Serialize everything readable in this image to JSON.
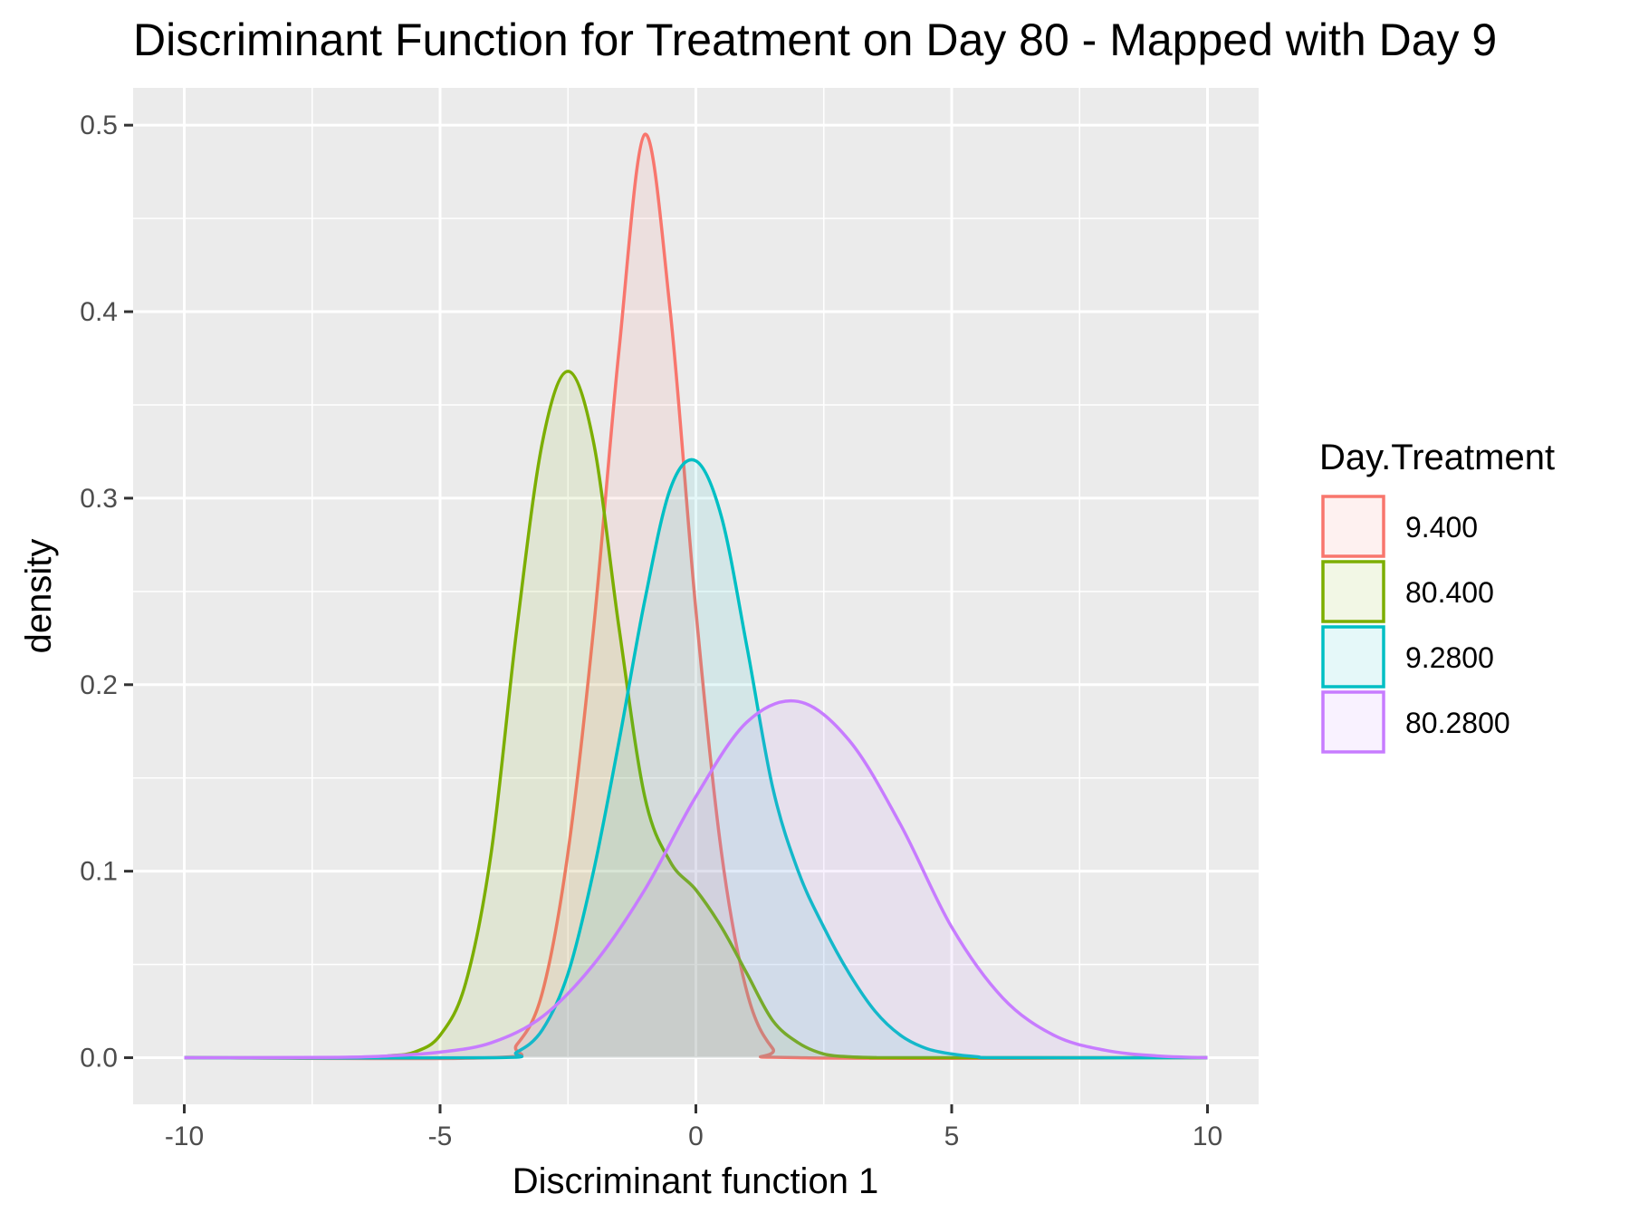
{
  "chart_data": {
    "type": "area",
    "title": "Discriminant Function for Treatment on Day 80 - Mapped with Day 9",
    "xlabel": "Discriminant function 1",
    "ylabel": "density",
    "xlim": [
      -11,
      11
    ],
    "ylim": [
      -0.025,
      0.52
    ],
    "x_ticks": [
      -10,
      -5,
      0,
      5,
      10
    ],
    "x_tick_labels": [
      "-10",
      "-5",
      "0",
      "5",
      "10"
    ],
    "y_ticks": [
      0.0,
      0.1,
      0.2,
      0.3,
      0.4,
      0.5
    ],
    "y_tick_labels": [
      "0.0",
      "0.1",
      "0.2",
      "0.3",
      "0.4",
      "0.5"
    ],
    "grid": true,
    "legend": {
      "title": "Day.Treatment",
      "placement": "right"
    },
    "series": [
      {
        "name": "9.400",
        "color": "#F8766D",
        "x": [
          -10,
          -4,
          -3.5,
          -3,
          -2.5,
          -2,
          -1.5,
          -1,
          -0.5,
          0,
          0.5,
          1,
          1.5,
          2,
          10
        ],
        "y": [
          0,
          0.0,
          0.007,
          0.035,
          0.11,
          0.23,
          0.38,
          0.495,
          0.4,
          0.24,
          0.11,
          0.035,
          0.005,
          0,
          0
        ]
      },
      {
        "name": "80.400",
        "color": "#7CAE00",
        "x": [
          -10,
          -6.5,
          -6,
          -5.5,
          -5,
          -4.5,
          -4,
          -3.5,
          -3,
          -2.5,
          -2,
          -1.5,
          -1,
          -0.5,
          0,
          0.5,
          1,
          1.5,
          2,
          2.5,
          3,
          3.5,
          4,
          10
        ],
        "y": [
          0,
          0.0,
          0.001,
          0.003,
          0.012,
          0.04,
          0.11,
          0.23,
          0.33,
          0.368,
          0.33,
          0.23,
          0.14,
          0.105,
          0.09,
          0.07,
          0.045,
          0.02,
          0.008,
          0.002,
          0.0005,
          0.0001,
          0,
          0
        ]
      },
      {
        "name": "9.2800",
        "color": "#00BFC4",
        "x": [
          -10,
          -4,
          -3.5,
          -3,
          -2.5,
          -2,
          -1.5,
          -1,
          -0.5,
          0,
          0.5,
          1,
          1.5,
          2,
          2.5,
          3,
          3.5,
          4,
          4.5,
          5,
          5.5,
          6,
          10
        ],
        "y": [
          0,
          0.0,
          0.003,
          0.015,
          0.045,
          0.1,
          0.17,
          0.245,
          0.305,
          0.32,
          0.29,
          0.22,
          0.145,
          0.1,
          0.07,
          0.045,
          0.025,
          0.012,
          0.005,
          0.002,
          0.0005,
          0,
          0
        ]
      },
      {
        "name": "80.2800",
        "color": "#C77CFF",
        "x": [
          -10,
          -7,
          -6,
          -5,
          -4,
          -3,
          -2,
          -1,
          0,
          1,
          2,
          3,
          4,
          5,
          6,
          7,
          8,
          9,
          10
        ],
        "y": [
          0,
          0.0002,
          0.001,
          0.003,
          0.008,
          0.022,
          0.05,
          0.09,
          0.14,
          0.18,
          0.191,
          0.17,
          0.125,
          0.07,
          0.032,
          0.012,
          0.004,
          0.001,
          0
        ]
      }
    ]
  }
}
